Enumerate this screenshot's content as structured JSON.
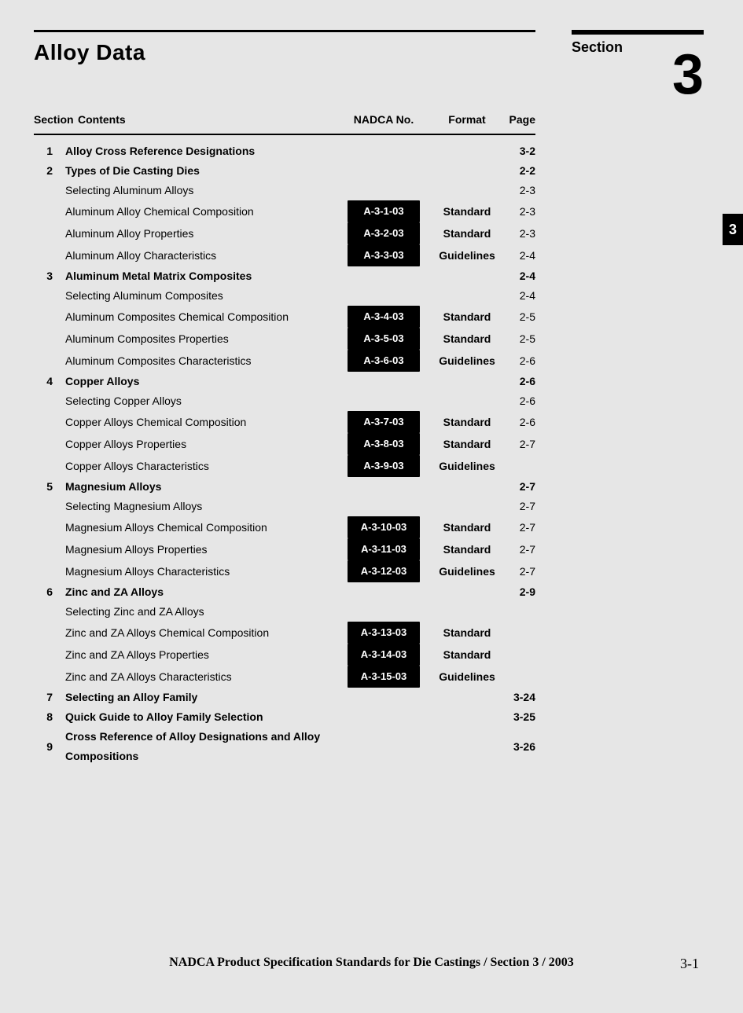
{
  "header": {
    "title": "Alloy Data",
    "section_label": "Section",
    "section_number": "3"
  },
  "side_tab": "3",
  "columns": {
    "section": "Section",
    "contents": "Contents",
    "nadca": "NADCA No.",
    "format": "Format",
    "page": "Page"
  },
  "rows": [
    {
      "num": "1",
      "bold": true,
      "title": "Alloy Cross Reference Designations",
      "nadca": "",
      "format": "",
      "page": "3-2"
    },
    {
      "num": "2",
      "bold": true,
      "title": "Types of Die Casting Dies",
      "nadca": "",
      "format": "",
      "page": "2-2"
    },
    {
      "num": "",
      "bold": false,
      "title": "Selecting Aluminum Alloys",
      "nadca": "",
      "format": "",
      "page": "2-3"
    },
    {
      "num": "",
      "bold": false,
      "title": "Aluminum Alloy Chemical Composition",
      "nadca": "A-3-1-03",
      "format": "Standard",
      "page": "2-3"
    },
    {
      "num": "",
      "bold": false,
      "title": "Aluminum Alloy Properties",
      "nadca": "A-3-2-03",
      "format": "Standard",
      "page": "2-3"
    },
    {
      "num": "",
      "bold": false,
      "title": "Aluminum Alloy Characteristics",
      "nadca": "A-3-3-03",
      "format": "Guidelines",
      "page": "2-4"
    },
    {
      "num": "3",
      "bold": true,
      "title": "Aluminum Metal Matrix Composites",
      "nadca": "",
      "format": "",
      "page": "2-4"
    },
    {
      "num": "",
      "bold": false,
      "title": "Selecting Aluminum Composites",
      "nadca": "",
      "format": "",
      "page": "2-4"
    },
    {
      "num": "",
      "bold": false,
      "title": "Aluminum Composites Chemical Composition",
      "nadca": "A-3-4-03",
      "format": "Standard",
      "page": "2-5"
    },
    {
      "num": "",
      "bold": false,
      "title": "Aluminum Composites Properties",
      "nadca": "A-3-5-03",
      "format": "Standard",
      "page": "2-5"
    },
    {
      "num": "",
      "bold": false,
      "title": "Aluminum Composites Characteristics",
      "nadca": "A-3-6-03",
      "format": "Guidelines",
      "page": "2-6"
    },
    {
      "num": "4",
      "bold": true,
      "title": "Copper Alloys",
      "nadca": "",
      "format": "",
      "page": "2-6"
    },
    {
      "num": "",
      "bold": false,
      "title": "Selecting Copper Alloys",
      "nadca": "",
      "format": "",
      "page": "2-6"
    },
    {
      "num": "",
      "bold": false,
      "title": "Copper Alloys Chemical Composition",
      "nadca": "A-3-7-03",
      "format": "Standard",
      "page": "2-6"
    },
    {
      "num": "",
      "bold": false,
      "title": "Copper Alloys Properties",
      "nadca": "A-3-8-03",
      "format": "Standard",
      "page": "2-7"
    },
    {
      "num": "",
      "bold": false,
      "title": "Copper Alloys Characteristics",
      "nadca": "A-3-9-03",
      "format": "Guidelines",
      "page": ""
    },
    {
      "num": "5",
      "bold": true,
      "title": "Magnesium Alloys",
      "nadca": "",
      "format": "",
      "page": "2-7"
    },
    {
      "num": "",
      "bold": false,
      "title": "Selecting Magnesium Alloys",
      "nadca": "",
      "format": "",
      "page": "2-7"
    },
    {
      "num": "",
      "bold": false,
      "title": "Magnesium Alloys Chemical Composition",
      "nadca": "A-3-10-03",
      "format": "Standard",
      "page": "2-7"
    },
    {
      "num": "",
      "bold": false,
      "title": "Magnesium Alloys Properties",
      "nadca": "A-3-11-03",
      "format": "Standard",
      "page": "2-7"
    },
    {
      "num": "",
      "bold": false,
      "title": "Magnesium Alloys Characteristics",
      "nadca": "A-3-12-03",
      "format": "Guidelines",
      "page": "2-7"
    },
    {
      "num": "6",
      "bold": true,
      "title": "Zinc and ZA Alloys",
      "nadca": "",
      "format": "",
      "page": "2-9"
    },
    {
      "num": "",
      "bold": false,
      "title": "Selecting Zinc and ZA Alloys",
      "nadca": "",
      "format": "",
      "page": ""
    },
    {
      "num": "",
      "bold": false,
      "title": "Zinc and ZA Alloys Chemical Composition",
      "nadca": "A-3-13-03",
      "format": "Standard",
      "page": ""
    },
    {
      "num": "",
      "bold": false,
      "title": "Zinc and ZA Alloys Properties",
      "nadca": "A-3-14-03",
      "format": "Standard",
      "page": ""
    },
    {
      "num": "",
      "bold": false,
      "title": "Zinc and ZA Alloys Characteristics",
      "nadca": "A-3-15-03",
      "format": "Guidelines",
      "page": ""
    },
    {
      "num": "7",
      "bold": true,
      "title": "Selecting an Alloy Family",
      "nadca": "",
      "format": "",
      "page": "3-24"
    },
    {
      "num": "8",
      "bold": true,
      "title": "Quick Guide to Alloy Family Selection",
      "nadca": "",
      "format": "",
      "page": "3-25"
    },
    {
      "num": "9",
      "bold": true,
      "title": "Cross Reference of Alloy Designations and Alloy Compositions",
      "nadca": "",
      "format": "",
      "page": "3-26"
    }
  ],
  "footer": {
    "text": "NADCA Product Specification Standards for Die Castings / Section 3 / 2003",
    "page_number": "3-1"
  }
}
